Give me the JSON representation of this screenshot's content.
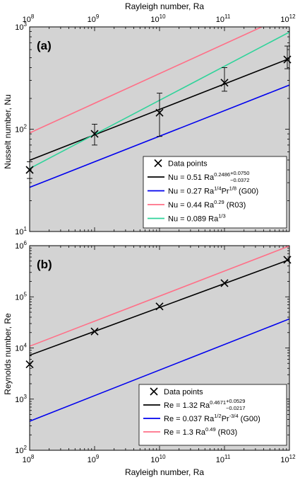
{
  "chart_data": [
    {
      "id": "panel-a",
      "type": "line",
      "panel_label": "(a)",
      "xscale": "log",
      "yscale": "log",
      "xlim": [
        100000000.0,
        1000000000000.0
      ],
      "ylim": [
        10,
        1000
      ],
      "xlabel_top": "Rayleigh number, Ra",
      "ylabel": "Nusselt number, Nu",
      "x_ticks": [
        {
          "value": 100000000.0,
          "base": "10",
          "exp": "8"
        },
        {
          "value": 1000000000.0,
          "base": "10",
          "exp": "9"
        },
        {
          "value": 10000000000.0,
          "base": "10",
          "exp": "10"
        },
        {
          "value": 100000000000.0,
          "base": "10",
          "exp": "11"
        },
        {
          "value": 1000000000000.0,
          "base": "10",
          "exp": "12"
        }
      ],
      "y_ticks": [
        {
          "value": 10,
          "base": "10",
          "exp": "1"
        },
        {
          "value": 100,
          "base": "10",
          "exp": "2"
        },
        {
          "value": 1000,
          "base": "10",
          "exp": "3"
        }
      ],
      "background": "#d3d3d3",
      "legend_position": "bottom-right",
      "points": {
        "name": "Data points",
        "x": [
          100000000.0,
          1000000000.0,
          10000000000.0,
          100000000000.0,
          1000000000000.0
        ],
        "y": [
          40,
          90,
          145,
          285,
          480
        ],
        "err_low": [
          33,
          70,
          85,
          235,
          390
        ],
        "err_high": [
          48,
          112,
          225,
          400,
          650
        ]
      },
      "series": [
        {
          "name": "Nu = 0.51 Ra^0.2486 (+0.0750, -0.0372)",
          "color": "#000000",
          "coef": 0.51,
          "exp": 0.2486
        },
        {
          "name": "Nu = 0.27 Ra^1/4 Pr^1/8 (G00)",
          "color": "#0000ee",
          "coef": 0.27,
          "exp": 0.25,
          "x_start": 100000000.0,
          "y_start": 27,
          "x_end": 1000000000000.0,
          "y_end": 270
        },
        {
          "name": "Nu = 0.44 Ra^0.29 (R03)",
          "color": "#ff6f87",
          "coef": 0.44,
          "exp": 0.29
        },
        {
          "name": "Nu = 0.089 Ra^1/3",
          "color": "#2fd39a",
          "coef": 0.089,
          "exp": 0.3333
        }
      ],
      "legend": [
        {
          "kind": "marker",
          "text": "Data points"
        },
        {
          "kind": "line",
          "color": "#000000",
          "parts": [
            [
              "n",
              "Nu = 0.51 Ra"
            ],
            [
              "sup",
              "0.2486"
            ],
            [
              "sup2",
              "+0.0750"
            ],
            [
              "sub2",
              "−0.0372"
            ]
          ]
        },
        {
          "kind": "line",
          "color": "#0000ee",
          "parts": [
            [
              "n",
              "Nu = 0.27 Ra"
            ],
            [
              "sup",
              "1/4"
            ],
            [
              "n",
              "Pr"
            ],
            [
              "sup",
              "1/8"
            ],
            [
              "n",
              " (G00)"
            ]
          ]
        },
        {
          "kind": "line",
          "color": "#ff6f87",
          "parts": [
            [
              "n",
              "Nu = 0.44 Ra"
            ],
            [
              "sup",
              "0.29"
            ],
            [
              "n",
              " (R03)"
            ]
          ]
        },
        {
          "kind": "line",
          "color": "#2fd39a",
          "parts": [
            [
              "n",
              "Nu = 0.089 Ra"
            ],
            [
              "sup",
              "1/3"
            ]
          ]
        }
      ]
    },
    {
      "id": "panel-b",
      "type": "line",
      "panel_label": "(b)",
      "xscale": "log",
      "yscale": "log",
      "xlim": [
        100000000.0,
        1000000000000.0
      ],
      "ylim": [
        100,
        1000000
      ],
      "xlabel": "Rayleigh number, Ra",
      "ylabel": "Reynolds number, Re",
      "x_ticks": [
        {
          "value": 100000000.0,
          "base": "10",
          "exp": "8"
        },
        {
          "value": 1000000000.0,
          "base": "10",
          "exp": "9"
        },
        {
          "value": 10000000000.0,
          "base": "10",
          "exp": "10"
        },
        {
          "value": 100000000000.0,
          "base": "10",
          "exp": "11"
        },
        {
          "value": 1000000000000.0,
          "base": "10",
          "exp": "12"
        }
      ],
      "y_ticks": [
        {
          "value": 100,
          "base": "10",
          "exp": "2"
        },
        {
          "value": 1000,
          "base": "10",
          "exp": "3"
        },
        {
          "value": 10000,
          "base": "10",
          "exp": "4"
        },
        {
          "value": 100000,
          "base": "10",
          "exp": "5"
        },
        {
          "value": 1000000,
          "base": "10",
          "exp": "6"
        }
      ],
      "background": "#d3d3d3",
      "legend_position": "bottom-right",
      "points": {
        "name": "Data points",
        "x": [
          100000000.0,
          1000000000.0,
          10000000000.0,
          100000000000.0,
          1000000000000.0
        ],
        "y": [
          4800,
          21000,
          65000,
          185000,
          530000
        ]
      },
      "series": [
        {
          "name": "Re = 1.32 Ra^0.4671 (+0.0529, -0.0217)",
          "color": "#000000",
          "coef": 1.32,
          "exp": 0.4671
        },
        {
          "name": "Re = 0.037 Ra^1/2 Pr^-3/4 (G00)",
          "color": "#0000ee",
          "coef": 0.037,
          "exp": 0.5,
          "x_start": 100000000.0,
          "y_start": 370,
          "x_end": 1000000000000.0,
          "y_end": 37000
        },
        {
          "name": "Re = 1.3 Ra^0.49 (R03)",
          "color": "#ff6f87",
          "coef": 1.3,
          "exp": 0.49
        }
      ],
      "legend": [
        {
          "kind": "marker",
          "text": "Data points"
        },
        {
          "kind": "line",
          "color": "#000000",
          "parts": [
            [
              "n",
              "Re = 1.32 Ra"
            ],
            [
              "sup",
              "0.4671"
            ],
            [
              "sup2",
              "+0.0529"
            ],
            [
              "sub2",
              "−0.0217"
            ]
          ]
        },
        {
          "kind": "line",
          "color": "#0000ee",
          "parts": [
            [
              "n",
              "Re = 0.037 Ra"
            ],
            [
              "sup",
              "1/2"
            ],
            [
              "n",
              "Pr"
            ],
            [
              "sup",
              "-3/4"
            ],
            [
              "n",
              " (G00)"
            ]
          ]
        },
        {
          "kind": "line",
          "color": "#ff6f87",
          "parts": [
            [
              "n",
              "Re = 1.3 Ra"
            ],
            [
              "sup",
              "0.49"
            ],
            [
              "n",
              " (R03)"
            ]
          ]
        }
      ]
    }
  ]
}
